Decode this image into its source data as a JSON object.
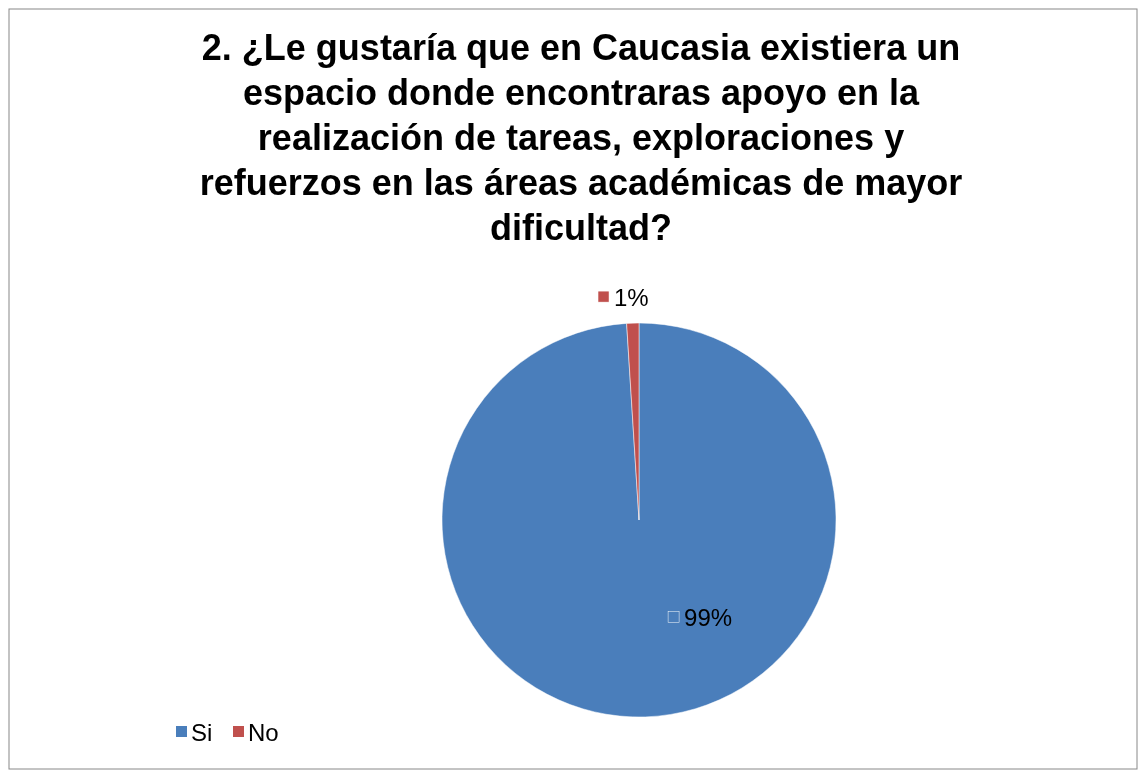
{
  "chart_data": {
    "type": "pie",
    "title": "2. ¿Le gustaría que en Caucasia existiera un espacio donde encontraras apoyo en la realización de tareas, exploraciones y refuerzos en las áreas académicas de mayor dificultad?",
    "categories": [
      "Si",
      "No"
    ],
    "values": [
      99,
      1
    ],
    "colors": [
      "#4a7ebb",
      "#c0504d"
    ],
    "value_labels": [
      "99%",
      "1%"
    ],
    "legend": "bottom left"
  }
}
